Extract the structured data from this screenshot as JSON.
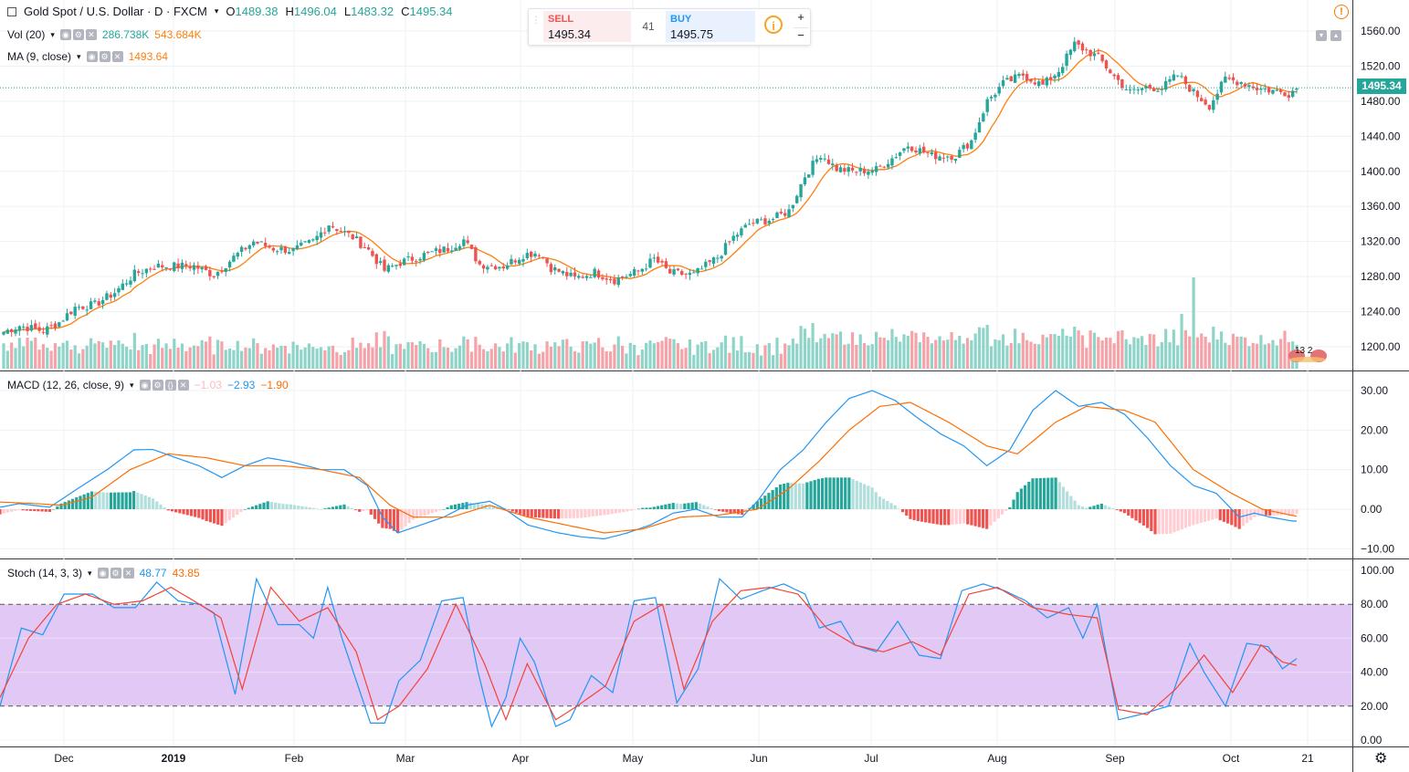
{
  "header": {
    "symbol": "Gold Spot / U.S. Dollar · D · FXCM",
    "open_label": "O",
    "open": "1489.38",
    "high_label": "H",
    "high": "1496.04",
    "low_label": "L",
    "low": "1483.32",
    "close_label": "C",
    "close": "1495.34"
  },
  "trade": {
    "sell_label": "SELL",
    "sell_price": "1495.34",
    "spread": "41",
    "buy_label": "BUY",
    "buy_price": "1495.75",
    "plus": "+",
    "minus": "−"
  },
  "legends": {
    "vol": {
      "name": "Vol (20)",
      "v1": "286.738K",
      "v2": "543.684K"
    },
    "ma": {
      "name": "MA (9, close)",
      "v1": "1493.64"
    },
    "macd": {
      "name": "MACD (12, 26, close, 9)",
      "v1": "−1.03",
      "v2": "−2.93",
      "v3": "−1.90"
    },
    "stoch": {
      "name": "Stoch (14, 3, 3)",
      "v1": "48.77",
      "v2": "43.85"
    }
  },
  "last_price_label": "1495.34",
  "events_badge": "13 2",
  "colors": {
    "up": "#26a69a",
    "down": "#ef5350",
    "ma": "#ff7f0e",
    "macd": "#2196f3",
    "signal": "#ff6d00",
    "stoch_k": "#2196f3",
    "stoch_d": "#f44336",
    "band": "#e1c8f5"
  },
  "chart_data": [
    {
      "type": "candlestick",
      "title": "Gold Spot / U.S. Dollar",
      "x_ticks": [
        "Dec",
        "2019",
        "Feb",
        "Mar",
        "Apr",
        "May",
        "Jun",
        "Jul",
        "Aug",
        "Sep",
        "Oct",
        "21"
      ],
      "y_ticks": [
        "1200.00",
        "1240.00",
        "1280.00",
        "1320.00",
        "1360.00",
        "1400.00",
        "1440.00",
        "1480.00",
        "1520.00",
        "1560.00"
      ],
      "ylim": [
        1176,
        1575
      ],
      "last": 1495.34,
      "close_anchors": [
        [
          0,
          1217
        ],
        [
          4,
          1224
        ],
        [
          10,
          1218
        ],
        [
          14,
          1228
        ],
        [
          18,
          1245
        ],
        [
          23,
          1248
        ],
        [
          28,
          1262
        ],
        [
          33,
          1283
        ],
        [
          38,
          1292
        ],
        [
          43,
          1292
        ],
        [
          48,
          1292
        ],
        [
          53,
          1282
        ],
        [
          58,
          1302
        ],
        [
          63,
          1320
        ],
        [
          68,
          1312
        ],
        [
          73,
          1310
        ],
        [
          78,
          1320
        ],
        [
          82,
          1340
        ],
        [
          88,
          1325
        ],
        [
          92,
          1310
        ],
        [
          96,
          1287
        ],
        [
          100,
          1296
        ],
        [
          106,
          1305
        ],
        [
          112,
          1312
        ],
        [
          116,
          1322
        ],
        [
          120,
          1294
        ],
        [
          126,
          1292
        ],
        [
          131,
          1305
        ],
        [
          135,
          1308
        ],
        [
          138,
          1290
        ],
        [
          144,
          1278
        ],
        [
          149,
          1285
        ],
        [
          154,
          1276
        ],
        [
          160,
          1286
        ],
        [
          164,
          1300
        ],
        [
          168,
          1284
        ],
        [
          174,
          1282
        ],
        [
          180,
          1302
        ],
        [
          184,
          1325
        ],
        [
          188,
          1340
        ],
        [
          194,
          1346
        ],
        [
          198,
          1355
        ],
        [
          202,
          1395
        ],
        [
          206,
          1420
        ],
        [
          210,
          1403
        ],
        [
          214,
          1400
        ],
        [
          220,
          1402
        ],
        [
          224,
          1415
        ],
        [
          228,
          1430
        ],
        [
          234,
          1418
        ],
        [
          240,
          1418
        ],
        [
          244,
          1435
        ],
        [
          248,
          1480
        ],
        [
          252,
          1500
        ],
        [
          257,
          1510
        ],
        [
          262,
          1498
        ],
        [
          266,
          1515
        ],
        [
          270,
          1545
        ],
        [
          276,
          1530
        ],
        [
          280,
          1508
        ],
        [
          284,
          1490
        ],
        [
          288,
          1496
        ],
        [
          292,
          1495
        ],
        [
          296,
          1510
        ],
        [
          300,
          1490
        ],
        [
          304,
          1475
        ],
        [
          308,
          1505
        ],
        [
          312,
          1502
        ],
        [
          316,
          1495
        ],
        [
          320,
          1492
        ],
        [
          324,
          1489
        ],
        [
          326,
          1495
        ]
      ],
      "ma_label": "MA (9, close)"
    },
    {
      "type": "bar",
      "title": "Vol (20)",
      "values_note": "volume histogram",
      "spike_index": 300
    },
    {
      "type": "line",
      "title": "MACD (12, 26, close, 9)",
      "y_ticks": [
        "−10.00",
        "0.00",
        "10.00",
        "20.00",
        "30.00"
      ],
      "ylim": [
        -10,
        32
      ],
      "macd_anchors": [
        [
          0,
          0.5
        ],
        [
          5,
          1.4
        ],
        [
          13,
          0.5
        ],
        [
          20,
          5
        ],
        [
          28,
          10
        ],
        [
          35,
          15
        ],
        [
          40,
          15.1
        ],
        [
          46,
          13
        ],
        [
          52,
          11
        ],
        [
          58,
          8
        ],
        [
          64,
          11
        ],
        [
          70,
          13
        ],
        [
          76,
          12
        ],
        [
          84,
          10
        ],
        [
          90,
          10
        ],
        [
          96,
          6
        ],
        [
          100,
          -2
        ],
        [
          104,
          -6
        ],
        [
          110,
          -4
        ],
        [
          116,
          -2
        ],
        [
          122,
          1
        ],
        [
          128,
          2
        ],
        [
          132,
          0
        ],
        [
          138,
          -4
        ],
        [
          146,
          -6
        ],
        [
          152,
          -7
        ],
        [
          158,
          -7.5
        ],
        [
          164,
          -6
        ],
        [
          170,
          -4
        ],
        [
          176,
          -1
        ],
        [
          182,
          0
        ],
        [
          188,
          -2
        ],
        [
          194,
          -2
        ],
        [
          198,
          2
        ],
        [
          204,
          10
        ],
        [
          210,
          15
        ],
        [
          216,
          22
        ],
        [
          222,
          28
        ],
        [
          228,
          30
        ],
        [
          234,
          27.5
        ],
        [
          240,
          23
        ],
        [
          246,
          19
        ],
        [
          252,
          16
        ],
        [
          258,
          11
        ],
        [
          264,
          15
        ],
        [
          270,
          25
        ],
        [
          276,
          30
        ],
        [
          282,
          26
        ],
        [
          288,
          27
        ],
        [
          294,
          24
        ],
        [
          300,
          18
        ],
        [
          306,
          11
        ],
        [
          312,
          6
        ],
        [
          318,
          4
        ],
        [
          324,
          -2
        ],
        [
          328,
          -1
        ],
        [
          332,
          -2
        ],
        [
          338,
          -3
        ]
      ],
      "signal_anchors": [
        [
          0,
          1.8
        ],
        [
          8,
          1.5
        ],
        [
          16,
          1
        ],
        [
          24,
          3
        ],
        [
          34,
          10
        ],
        [
          44,
          14
        ],
        [
          54,
          13
        ],
        [
          64,
          11
        ],
        [
          74,
          11
        ],
        [
          84,
          10
        ],
        [
          94,
          8
        ],
        [
          102,
          1
        ],
        [
          108,
          -2
        ],
        [
          118,
          -2
        ],
        [
          128,
          1
        ],
        [
          138,
          -2
        ],
        [
          148,
          -4
        ],
        [
          158,
          -6
        ],
        [
          168,
          -5
        ],
        [
          178,
          -2
        ],
        [
          188,
          -1.5
        ],
        [
          198,
          0
        ],
        [
          206,
          5
        ],
        [
          214,
          12
        ],
        [
          222,
          20
        ],
        [
          230,
          26
        ],
        [
          238,
          27
        ],
        [
          248,
          22
        ],
        [
          258,
          16
        ],
        [
          266,
          14
        ],
        [
          276,
          22
        ],
        [
          284,
          26
        ],
        [
          294,
          25
        ],
        [
          302,
          22
        ],
        [
          312,
          10
        ],
        [
          322,
          4
        ],
        [
          330,
          0
        ],
        [
          340,
          -2
        ]
      ]
    },
    {
      "type": "line",
      "title": "Stoch (14, 3, 3)",
      "y_ticks": [
        "0.00",
        "20.00",
        "40.00",
        "60.00",
        "80.00",
        "100.00"
      ],
      "ylim": [
        -5,
        105
      ],
      "band": [
        20,
        80
      ],
      "k_anchors": [
        [
          0,
          20
        ],
        [
          6,
          66
        ],
        [
          12,
          62
        ],
        [
          18,
          86
        ],
        [
          26,
          86
        ],
        [
          32,
          78
        ],
        [
          38,
          78
        ],
        [
          44,
          93
        ],
        [
          50,
          82
        ],
        [
          56,
          80
        ],
        [
          60,
          75
        ],
        [
          66,
          27
        ],
        [
          72,
          95
        ],
        [
          78,
          68
        ],
        [
          84,
          68
        ],
        [
          88,
          60
        ],
        [
          92,
          90
        ],
        [
          96,
          60
        ],
        [
          104,
          10
        ],
        [
          108,
          10
        ],
        [
          112,
          35
        ],
        [
          118,
          47
        ],
        [
          124,
          82
        ],
        [
          130,
          84
        ],
        [
          134,
          42
        ],
        [
          138,
          8
        ],
        [
          142,
          25
        ],
        [
          146,
          60
        ],
        [
          150,
          46
        ],
        [
          156,
          8
        ],
        [
          160,
          12
        ],
        [
          166,
          38
        ],
        [
          172,
          28
        ],
        [
          178,
          82
        ],
        [
          184,
          84
        ],
        [
          190,
          22
        ],
        [
          196,
          42
        ],
        [
          202,
          95
        ],
        [
          208,
          83
        ],
        [
          214,
          88
        ],
        [
          220,
          92
        ],
        [
          226,
          86
        ],
        [
          230,
          66
        ],
        [
          236,
          70
        ],
        [
          240,
          56
        ],
        [
          246,
          52
        ],
        [
          252,
          70
        ],
        [
          258,
          50
        ],
        [
          264,
          48
        ],
        [
          270,
          88
        ],
        [
          276,
          92
        ],
        [
          282,
          88
        ],
        [
          288,
          82
        ],
        [
          294,
          72
        ],
        [
          300,
          78
        ],
        [
          304,
          60
        ],
        [
          308,
          80
        ],
        [
          314,
          12
        ],
        [
          320,
          15
        ],
        [
          328,
          20
        ],
        [
          334,
          57
        ],
        [
          338,
          40
        ],
        [
          344,
          20
        ],
        [
          350,
          57
        ],
        [
          356,
          55
        ],
        [
          360,
          42
        ],
        [
          364,
          48
        ]
      ],
      "d_anchors": [
        [
          0,
          25
        ],
        [
          8,
          60
        ],
        [
          16,
          80
        ],
        [
          24,
          86
        ],
        [
          32,
          80
        ],
        [
          40,
          82
        ],
        [
          48,
          90
        ],
        [
          56,
          80
        ],
        [
          62,
          72
        ],
        [
          68,
          30
        ],
        [
          76,
          90
        ],
        [
          84,
          70
        ],
        [
          92,
          78
        ],
        [
          100,
          52
        ],
        [
          106,
          12
        ],
        [
          112,
          20
        ],
        [
          120,
          42
        ],
        [
          128,
          80
        ],
        [
          136,
          45
        ],
        [
          142,
          12
        ],
        [
          148,
          45
        ],
        [
          156,
          12
        ],
        [
          162,
          20
        ],
        [
          170,
          32
        ],
        [
          178,
          70
        ],
        [
          186,
          80
        ],
        [
          192,
          30
        ],
        [
          200,
          70
        ],
        [
          208,
          88
        ],
        [
          216,
          90
        ],
        [
          224,
          86
        ],
        [
          232,
          66
        ],
        [
          240,
          56
        ],
        [
          248,
          52
        ],
        [
          256,
          58
        ],
        [
          264,
          50
        ],
        [
          272,
          86
        ],
        [
          280,
          90
        ],
        [
          290,
          78
        ],
        [
          300,
          74
        ],
        [
          308,
          72
        ],
        [
          314,
          18
        ],
        [
          322,
          15
        ],
        [
          330,
          30
        ],
        [
          338,
          50
        ],
        [
          346,
          28
        ],
        [
          354,
          56
        ],
        [
          360,
          46
        ],
        [
          364,
          44
        ]
      ]
    }
  ]
}
